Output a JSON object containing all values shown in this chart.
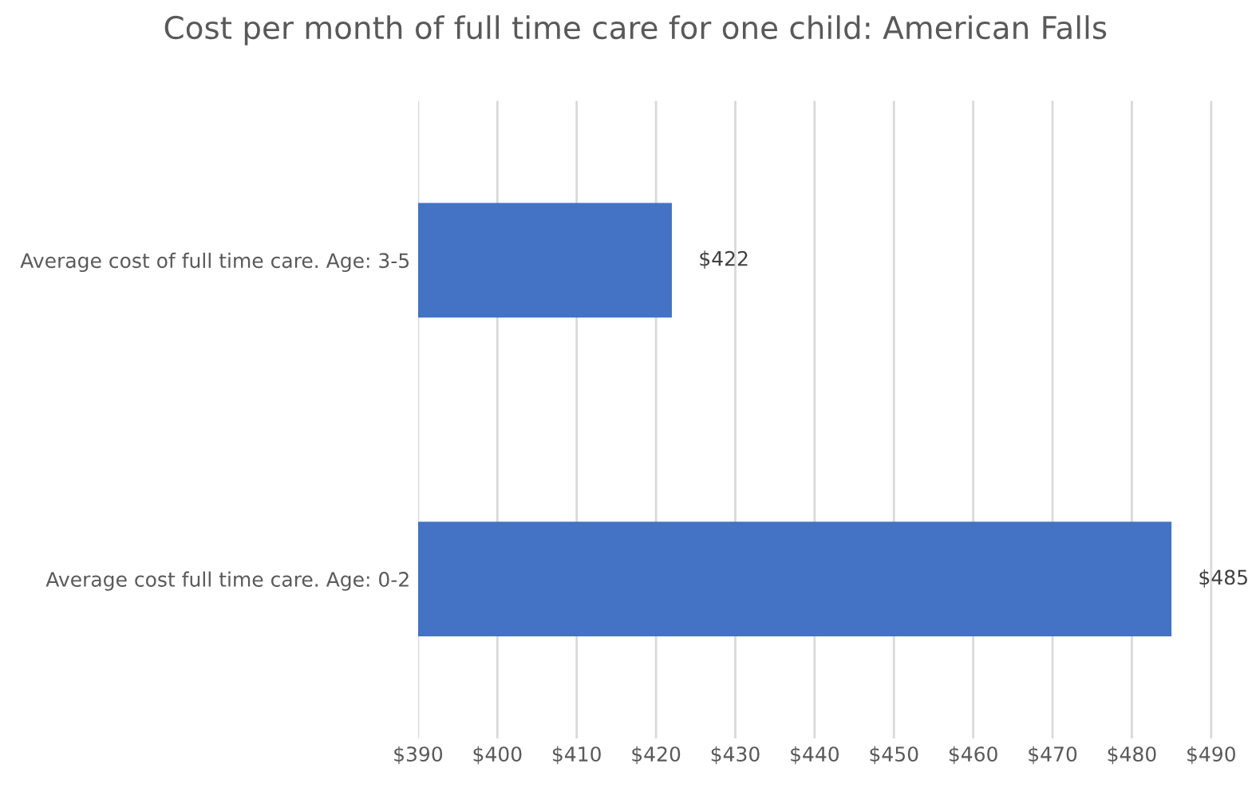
{
  "chart_data": {
    "type": "bar",
    "orientation": "horizontal",
    "title": "Cost per month of full time care for one child: American Falls",
    "categories": [
      "Average cost of full time care. Age: 3-5",
      "Average cost full time care. Age: 0-2"
    ],
    "values": [
      422,
      485
    ],
    "value_labels": [
      "$422",
      "$485"
    ],
    "color": "#4472c4",
    "xlim": [
      390,
      490
    ],
    "xticks": [
      {
        "value": 390,
        "label": "$390"
      },
      {
        "value": 400,
        "label": "$400"
      },
      {
        "value": 410,
        "label": "$410"
      },
      {
        "value": 420,
        "label": "$420"
      },
      {
        "value": 430,
        "label": "$430"
      },
      {
        "value": 440,
        "label": "$440"
      },
      {
        "value": 450,
        "label": "$450"
      },
      {
        "value": 460,
        "label": "$460"
      },
      {
        "value": 470,
        "label": "$470"
      },
      {
        "value": 480,
        "label": "$480"
      },
      {
        "value": 490,
        "label": "$490"
      }
    ],
    "grid": "x"
  }
}
